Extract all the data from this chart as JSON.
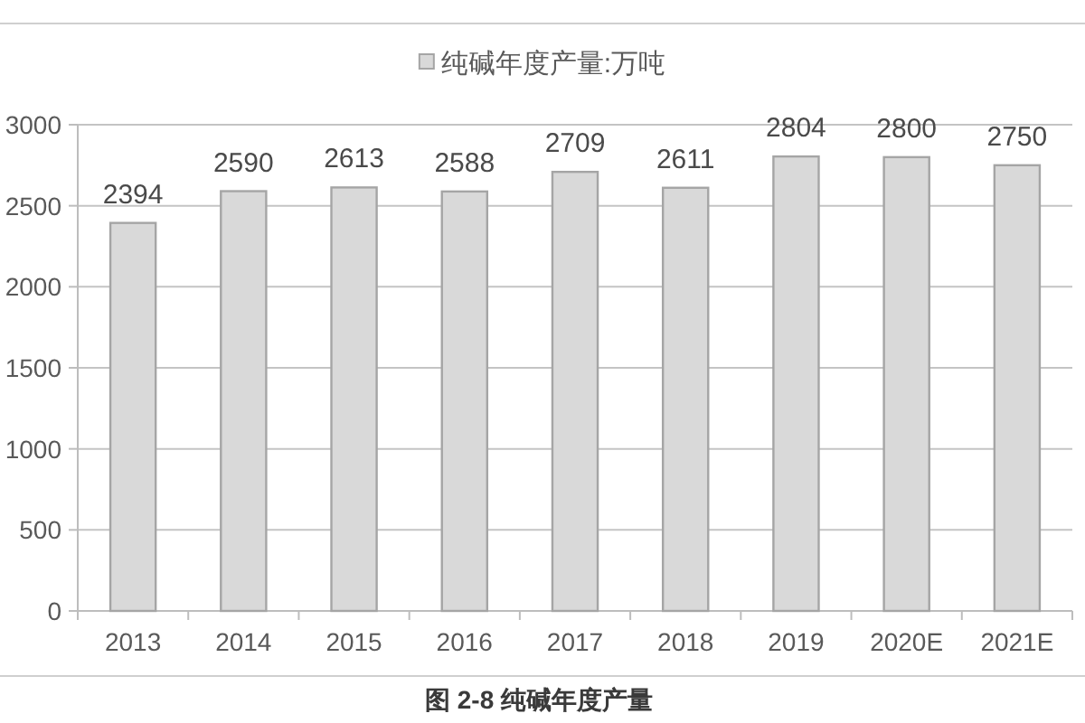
{
  "chart_data": {
    "type": "bar",
    "categories": [
      "2013",
      "2014",
      "2015",
      "2016",
      "2017",
      "2018",
      "2019",
      "2020E",
      "2021E"
    ],
    "series": [
      {
        "name": "纯碱年度产量:万吨",
        "color": "#d9d9d9",
        "values": [
          2394,
          2590,
          2613,
          2588,
          2709,
          2611,
          2804,
          2800,
          2750
        ]
      }
    ],
    "ylim": [
      0,
      3000
    ],
    "yticks": [
      0,
      500,
      1000,
      1500,
      2000,
      2500,
      3000
    ],
    "grid": "y",
    "legend": "top",
    "data_labels": true,
    "annotations": [
      "图 2-8 纯碱年度产量"
    ]
  }
}
